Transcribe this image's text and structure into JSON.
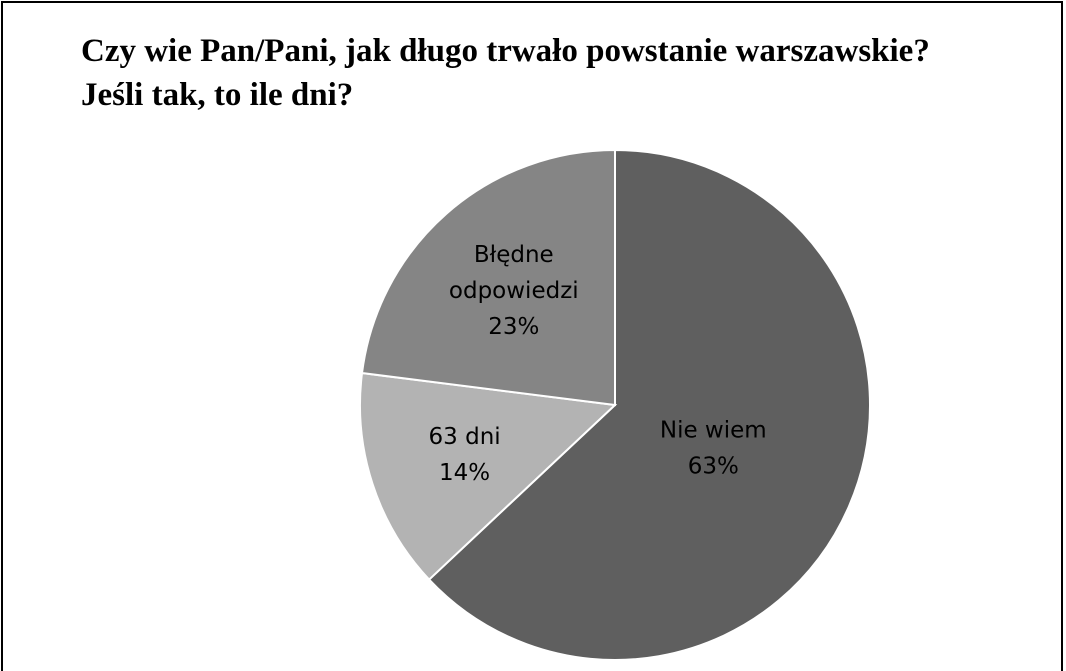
{
  "chart_data": {
    "type": "pie",
    "title": "Czy wie Pan/Pani, jak długo trwało powstanie warszawskie?\nJeśli tak, to ile dni?",
    "slices": [
      {
        "label": "Nie wiem",
        "value": 63,
        "value_label": "63%",
        "color": "#5f5f5f"
      },
      {
        "label": "63 dni",
        "value": 14,
        "value_label": "14%",
        "color": "#b3b3b3"
      },
      {
        "label": "Błędne odpowiedzi",
        "value": 23,
        "value_label": "23%",
        "color": "#858585"
      }
    ],
    "start_angle": "12 o'clock",
    "direction": "clockwise",
    "legend": "none",
    "labels": "inside slices"
  }
}
